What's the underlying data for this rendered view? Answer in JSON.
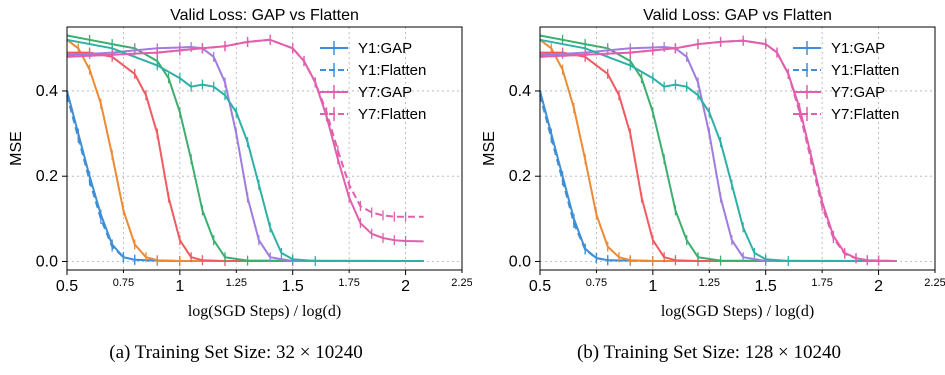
{
  "colors": {
    "Y1": "#3f8fd6",
    "Y2": "#ec8a36",
    "Y3": "#ef5b60",
    "Y4": "#3cae6d",
    "Y5": "#9f7ce0",
    "Y6": "#2fb0a6",
    "Y7": "#e15fad"
  },
  "chart_data": [
    {
      "type": "line",
      "title": "Valid Loss: GAP vs Flatten",
      "xlabel": "log(SGD Steps) / log(d)",
      "ylabel": "MSE",
      "xlim": [
        0.5,
        2.25
      ],
      "ylim": [
        -0.02,
        0.55
      ],
      "xticks_major": [
        "0.5",
        "1",
        "1.5",
        "2"
      ],
      "xticks_minor": [
        "0.75",
        "1.25",
        "1.75",
        "2.25"
      ],
      "yticks": [
        "0.0",
        "0.2",
        "0.4"
      ],
      "grid": true,
      "legend_position": "top-right",
      "legend": [
        {
          "label": "Y1:GAP",
          "color_key": "Y1",
          "style": "solid"
        },
        {
          "label": "Y1:Flatten",
          "color_key": "Y1",
          "style": "dashed"
        },
        {
          "label": "Y7:GAP",
          "color_key": "Y7",
          "style": "solid"
        },
        {
          "label": "Y7:Flatten",
          "color_key": "Y7",
          "style": "dashed"
        }
      ],
      "series": [
        {
          "key": "Y1",
          "style": "solid",
          "x": [
            0.5,
            0.55,
            0.6,
            0.65,
            0.7,
            0.75,
            0.8,
            0.9,
            1.0,
            2.08
          ],
          "y": [
            0.4,
            0.3,
            0.2,
            0.11,
            0.04,
            0.01,
            0.004,
            0.002,
            0.001,
            0.001
          ]
        },
        {
          "key": "Y1",
          "style": "dashed",
          "x": [
            0.5,
            0.55,
            0.6,
            0.65,
            0.7,
            0.75,
            0.8,
            0.9,
            1.0,
            2.08
          ],
          "y": [
            0.39,
            0.29,
            0.19,
            0.1,
            0.035,
            0.01,
            0.004,
            0.002,
            0.001,
            0.001
          ]
        },
        {
          "key": "Y2",
          "style": "solid",
          "x": [
            0.5,
            0.55,
            0.6,
            0.65,
            0.7,
            0.75,
            0.8,
            0.85,
            0.9,
            1.0,
            2.08
          ],
          "y": [
            0.52,
            0.5,
            0.45,
            0.37,
            0.25,
            0.12,
            0.04,
            0.01,
            0.003,
            0.001,
            0.001
          ]
        },
        {
          "key": "Y3",
          "style": "solid",
          "x": [
            0.5,
            0.6,
            0.7,
            0.8,
            0.85,
            0.9,
            0.95,
            1.0,
            1.05,
            1.1,
            1.2,
            2.08
          ],
          "y": [
            0.49,
            0.49,
            0.48,
            0.44,
            0.39,
            0.3,
            0.15,
            0.05,
            0.01,
            0.003,
            0.001,
            0.001
          ]
        },
        {
          "key": "Y4",
          "style": "solid",
          "x": [
            0.5,
            0.6,
            0.7,
            0.8,
            0.9,
            0.95,
            1.0,
            1.05,
            1.1,
            1.15,
            1.2,
            1.3,
            2.08
          ],
          "y": [
            0.53,
            0.52,
            0.51,
            0.5,
            0.47,
            0.43,
            0.35,
            0.24,
            0.12,
            0.05,
            0.01,
            0.002,
            0.001
          ]
        },
        {
          "key": "Y5",
          "style": "solid",
          "x": [
            0.5,
            0.6,
            0.7,
            0.8,
            0.9,
            1.0,
            1.05,
            1.1,
            1.15,
            1.2,
            1.25,
            1.3,
            1.35,
            1.4,
            1.5,
            2.08
          ],
          "y": [
            0.485,
            0.487,
            0.49,
            0.495,
            0.5,
            0.502,
            0.503,
            0.5,
            0.48,
            0.42,
            0.3,
            0.15,
            0.05,
            0.01,
            0.001,
            0.001
          ]
        },
        {
          "key": "Y6",
          "style": "solid",
          "x": [
            0.5,
            0.7,
            0.9,
            1.0,
            1.05,
            1.1,
            1.15,
            1.2,
            1.25,
            1.3,
            1.35,
            1.4,
            1.45,
            1.5,
            1.6,
            2.08
          ],
          "y": [
            0.52,
            0.5,
            0.46,
            0.43,
            0.41,
            0.415,
            0.41,
            0.39,
            0.35,
            0.28,
            0.18,
            0.08,
            0.02,
            0.005,
            0.001,
            0.001
          ]
        },
        {
          "key": "Y7",
          "style": "solid",
          "x": [
            0.5,
            0.7,
            0.9,
            1.0,
            1.1,
            1.2,
            1.3,
            1.4,
            1.5,
            1.55,
            1.6,
            1.65,
            1.7,
            1.75,
            1.8,
            1.85,
            1.9,
            1.95,
            2.0,
            2.08
          ],
          "y": [
            0.48,
            0.485,
            0.49,
            0.495,
            0.5,
            0.505,
            0.515,
            0.52,
            0.5,
            0.47,
            0.42,
            0.34,
            0.24,
            0.15,
            0.09,
            0.065,
            0.055,
            0.05,
            0.048,
            0.047
          ]
        },
        {
          "key": "Y7",
          "style": "dashed",
          "x": [
            0.5,
            0.7,
            0.9,
            1.0,
            1.1,
            1.2,
            1.3,
            1.4,
            1.5,
            1.55,
            1.6,
            1.65,
            1.7,
            1.75,
            1.8,
            1.85,
            1.9,
            1.95,
            2.0,
            2.08
          ],
          "y": [
            0.48,
            0.485,
            0.49,
            0.495,
            0.5,
            0.505,
            0.515,
            0.52,
            0.5,
            0.47,
            0.42,
            0.35,
            0.26,
            0.18,
            0.13,
            0.115,
            0.108,
            0.105,
            0.105,
            0.105
          ]
        }
      ]
    },
    {
      "type": "line",
      "title": "Valid Loss: GAP vs Flatten",
      "xlabel": "log(SGD Steps) / log(d)",
      "ylabel": "MSE",
      "xlim": [
        0.5,
        2.25
      ],
      "ylim": [
        -0.02,
        0.55
      ],
      "xticks_major": [
        "0.5",
        "1",
        "1.5",
        "2"
      ],
      "xticks_minor": [
        "0.75",
        "1.25",
        "1.75",
        "2.25"
      ],
      "yticks": [
        "0.0",
        "0.2",
        "0.4"
      ],
      "grid": true,
      "legend_position": "top-right",
      "legend": [
        {
          "label": "Y1:GAP",
          "color_key": "Y1",
          "style": "solid"
        },
        {
          "label": "Y1:Flatten",
          "color_key": "Y1",
          "style": "dashed"
        },
        {
          "label": "Y7:GAP",
          "color_key": "Y7",
          "style": "solid"
        },
        {
          "label": "Y7:Flatten",
          "color_key": "Y7",
          "style": "dashed"
        }
      ],
      "series": [
        {
          "key": "Y1",
          "style": "solid",
          "x": [
            0.5,
            0.55,
            0.6,
            0.65,
            0.7,
            0.75,
            0.8,
            0.9,
            1.0,
            2.08
          ],
          "y": [
            0.4,
            0.3,
            0.2,
            0.1,
            0.03,
            0.008,
            0.003,
            0.002,
            0.001,
            0.001
          ]
        },
        {
          "key": "Y1",
          "style": "dashed",
          "x": [
            0.5,
            0.55,
            0.6,
            0.65,
            0.7,
            0.75,
            0.8,
            0.9,
            1.0,
            2.08
          ],
          "y": [
            0.39,
            0.29,
            0.19,
            0.09,
            0.028,
            0.008,
            0.003,
            0.002,
            0.001,
            0.001
          ]
        },
        {
          "key": "Y2",
          "style": "solid",
          "x": [
            0.5,
            0.55,
            0.6,
            0.65,
            0.7,
            0.75,
            0.8,
            0.85,
            0.9,
            1.0,
            2.08
          ],
          "y": [
            0.52,
            0.5,
            0.45,
            0.36,
            0.24,
            0.11,
            0.035,
            0.01,
            0.003,
            0.001,
            0.001
          ]
        },
        {
          "key": "Y3",
          "style": "solid",
          "x": [
            0.5,
            0.6,
            0.7,
            0.8,
            0.85,
            0.9,
            0.95,
            1.0,
            1.05,
            1.1,
            1.2,
            2.08
          ],
          "y": [
            0.49,
            0.49,
            0.48,
            0.44,
            0.39,
            0.3,
            0.15,
            0.05,
            0.01,
            0.003,
            0.001,
            0.001
          ]
        },
        {
          "key": "Y4",
          "style": "solid",
          "x": [
            0.5,
            0.6,
            0.7,
            0.8,
            0.9,
            0.95,
            1.0,
            1.05,
            1.1,
            1.15,
            1.2,
            1.3,
            2.08
          ],
          "y": [
            0.53,
            0.52,
            0.51,
            0.5,
            0.47,
            0.43,
            0.35,
            0.24,
            0.12,
            0.05,
            0.01,
            0.002,
            0.001
          ]
        },
        {
          "key": "Y5",
          "style": "solid",
          "x": [
            0.5,
            0.6,
            0.7,
            0.8,
            0.9,
            1.0,
            1.05,
            1.1,
            1.15,
            1.2,
            1.25,
            1.3,
            1.35,
            1.4,
            1.5,
            2.08
          ],
          "y": [
            0.485,
            0.487,
            0.49,
            0.495,
            0.5,
            0.502,
            0.503,
            0.5,
            0.48,
            0.42,
            0.3,
            0.15,
            0.05,
            0.01,
            0.001,
            0.001
          ]
        },
        {
          "key": "Y6",
          "style": "solid",
          "x": [
            0.5,
            0.7,
            0.9,
            1.0,
            1.05,
            1.1,
            1.15,
            1.2,
            1.25,
            1.3,
            1.35,
            1.4,
            1.45,
            1.5,
            1.6,
            2.08
          ],
          "y": [
            0.52,
            0.5,
            0.46,
            0.43,
            0.41,
            0.415,
            0.41,
            0.39,
            0.35,
            0.28,
            0.18,
            0.08,
            0.02,
            0.005,
            0.001,
            0.001
          ]
        },
        {
          "key": "Y7",
          "style": "solid",
          "x": [
            0.5,
            0.7,
            0.9,
            1.0,
            1.1,
            1.2,
            1.3,
            1.4,
            1.5,
            1.55,
            1.6,
            1.65,
            1.7,
            1.75,
            1.8,
            1.85,
            1.9,
            1.95,
            2.0,
            2.08
          ],
          "y": [
            0.48,
            0.485,
            0.49,
            0.495,
            0.5,
            0.51,
            0.515,
            0.518,
            0.51,
            0.49,
            0.44,
            0.36,
            0.25,
            0.14,
            0.06,
            0.02,
            0.008,
            0.003,
            0.002,
            0.001
          ]
        },
        {
          "key": "Y7",
          "style": "dashed",
          "x": [
            0.5,
            0.7,
            0.9,
            1.0,
            1.1,
            1.2,
            1.3,
            1.4,
            1.5,
            1.55,
            1.6,
            1.65,
            1.7,
            1.75,
            1.8,
            1.85,
            1.9,
            1.95,
            2.0,
            2.08
          ],
          "y": [
            0.48,
            0.485,
            0.49,
            0.495,
            0.5,
            0.51,
            0.515,
            0.518,
            0.51,
            0.49,
            0.44,
            0.35,
            0.24,
            0.13,
            0.055,
            0.018,
            0.007,
            0.003,
            0.002,
            0.001
          ]
        }
      ]
    }
  ],
  "captions": [
    "(a) Training Set Size: 32 × 10240",
    "(b) Training Set Size: 128 × 10240"
  ]
}
